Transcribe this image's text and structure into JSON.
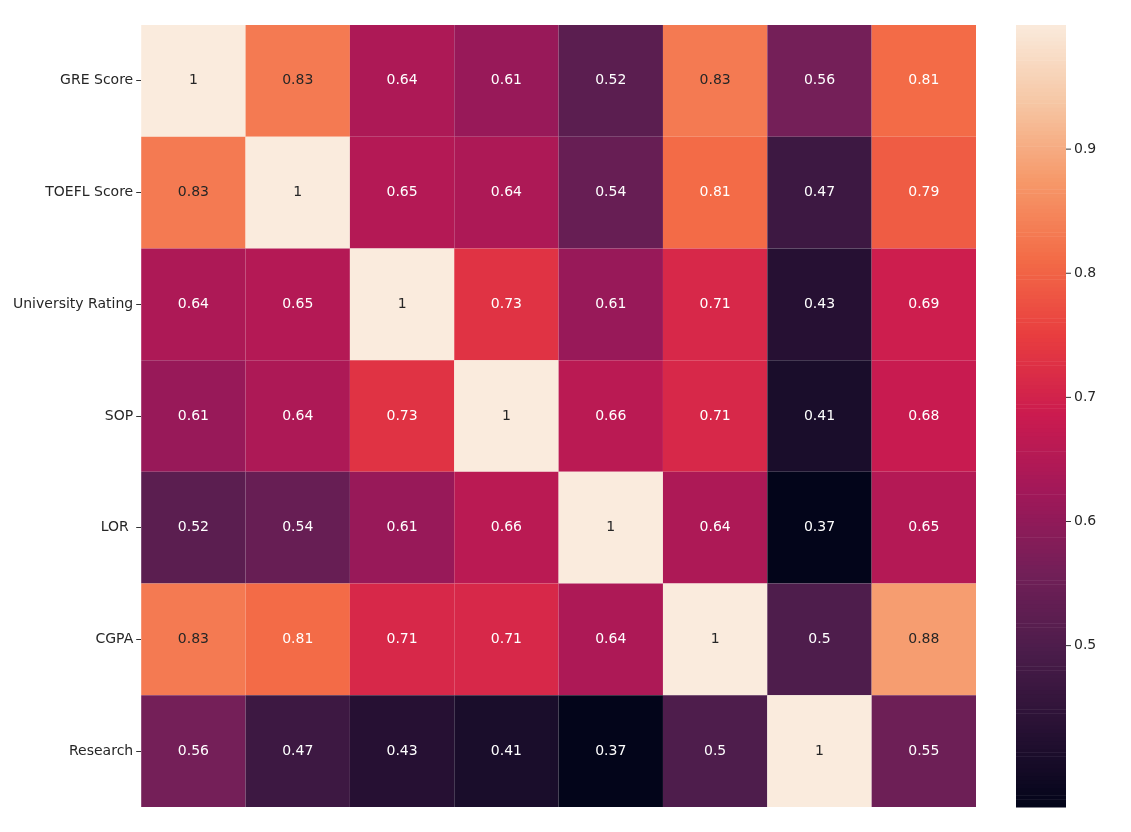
{
  "chart_data": {
    "type": "heatmap",
    "categories": [
      null,
      null,
      null,
      null,
      null,
      null,
      null,
      null
    ],
    "y_categories": [
      "GRE Score",
      "TOEFL Score",
      "University Rating",
      "SOP",
      "LOR ",
      "CGPA",
      "Research"
    ],
    "cells": [
      [
        1,
        0.83,
        0.64,
        0.61,
        0.52,
        0.83,
        0.56,
        0.81
      ],
      [
        0.83,
        1,
        0.65,
        0.64,
        0.54,
        0.81,
        0.47,
        0.79
      ],
      [
        0.64,
        0.65,
        1,
        0.73,
        0.61,
        0.71,
        0.43,
        0.69
      ],
      [
        0.61,
        0.64,
        0.73,
        1,
        0.66,
        0.71,
        0.41,
        0.68
      ],
      [
        0.52,
        0.54,
        0.61,
        0.66,
        1,
        0.64,
        0.37,
        0.65
      ],
      [
        0.83,
        0.81,
        0.71,
        0.71,
        0.64,
        1,
        0.5,
        0.88
      ],
      [
        0.56,
        0.47,
        0.43,
        0.41,
        0.37,
        0.5,
        1,
        0.55
      ]
    ],
    "data_labels": true,
    "clim": [
      0.37,
      1
    ],
    "cticks": [
      0.5,
      0.6,
      0.7,
      0.8,
      0.9
    ]
  }
}
